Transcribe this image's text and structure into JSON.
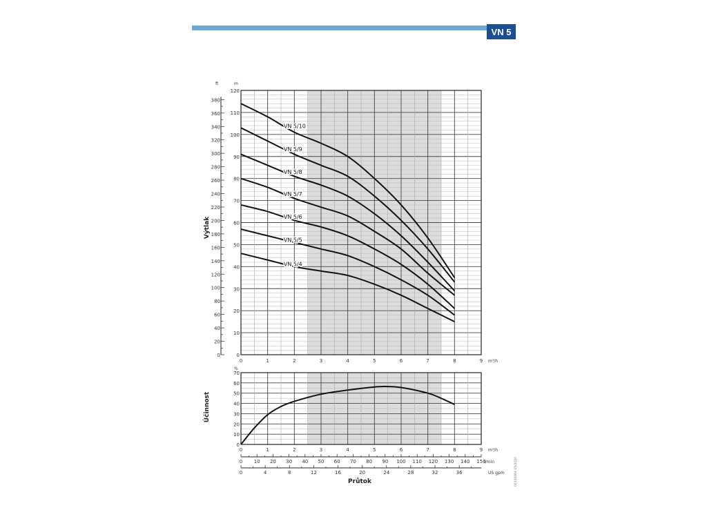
{
  "header": {
    "model": "VN 5",
    "accent_color": "#6aa8dc",
    "badge_color": "#1a4f96"
  },
  "doc_code": "00110064 05/2010",
  "chart_data": [
    {
      "type": "line",
      "ylabel": "Výtlak",
      "yunit": "m",
      "yunit_secondary": "ft",
      "xunit": "m³/h",
      "xlim": [
        0,
        9
      ],
      "ylim": [
        0,
        120
      ],
      "ylim_secondary": [
        0,
        380
      ],
      "grid": true,
      "shaded_x_range": [
        2.5,
        7.5
      ],
      "x_ticks": [
        0,
        1,
        2,
        3,
        4,
        5,
        6,
        7,
        8,
        9
      ],
      "y_ticks": [
        0,
        10,
        20,
        30,
        40,
        50,
        60,
        70,
        80,
        90,
        100,
        110,
        120
      ],
      "y_ticks_secondary": [
        0,
        20,
        40,
        60,
        80,
        100,
        120,
        140,
        160,
        180,
        200,
        220,
        240,
        260,
        280,
        300,
        320,
        340,
        360,
        380
      ],
      "x": [
        0,
        1,
        2,
        3,
        4,
        5,
        6,
        7,
        8
      ],
      "series": [
        {
          "name": "VN 5/10",
          "values": [
            114,
            108,
            101,
            96,
            90,
            80,
            68,
            53,
            35
          ]
        },
        {
          "name": "VN 5/9",
          "values": [
            103,
            97,
            91,
            86,
            81,
            72,
            61,
            48,
            33
          ]
        },
        {
          "name": "VN 5/8",
          "values": [
            91,
            86,
            81,
            77,
            72,
            64,
            54,
            42,
            29
          ]
        },
        {
          "name": "VN 5/7",
          "values": [
            80,
            76,
            71,
            67,
            63,
            56,
            48,
            37,
            27
          ]
        },
        {
          "name": "VN 5/6",
          "values": [
            68,
            65,
            61,
            58,
            54,
            48,
            41,
            32,
            21
          ]
        },
        {
          "name": "VN 5/5",
          "values": [
            57,
            54,
            51,
            48,
            45,
            40,
            34,
            27,
            18
          ]
        },
        {
          "name": "VN 5/4",
          "values": [
            46,
            43,
            40,
            38,
            36,
            32,
            27,
            21,
            15
          ]
        }
      ]
    },
    {
      "type": "line",
      "ylabel": "Účinnost",
      "yunit": "%",
      "xlabel": "Průtok",
      "xunit": "m³/h",
      "xunit2": "l/min",
      "xunit3": "US gpm",
      "xlim": [
        0,
        9
      ],
      "ylim": [
        0,
        70
      ],
      "grid": true,
      "shaded_x_range": [
        2.5,
        7.5
      ],
      "x_ticks": [
        0,
        1,
        2,
        3,
        4,
        5,
        6,
        7,
        8,
        9
      ],
      "x_ticks_lmin": [
        0,
        10,
        20,
        30,
        40,
        50,
        60,
        70,
        80,
        90,
        100,
        110,
        120,
        130,
        140,
        150
      ],
      "x_ticks_gpm": [
        0,
        4,
        8,
        12,
        16,
        20,
        24,
        28,
        32,
        36
      ],
      "y_ticks": [
        0,
        10,
        20,
        30,
        40,
        50,
        60,
        70
      ],
      "series": [
        {
          "x": [
            0,
            0.5,
            1,
            1.5,
            2,
            3,
            4,
            5,
            5.4,
            6,
            7,
            7.5,
            8
          ],
          "values": [
            0,
            16,
            29,
            37,
            42,
            49,
            53,
            56,
            56.5,
            55.5,
            50,
            45,
            39
          ]
        }
      ]
    }
  ]
}
